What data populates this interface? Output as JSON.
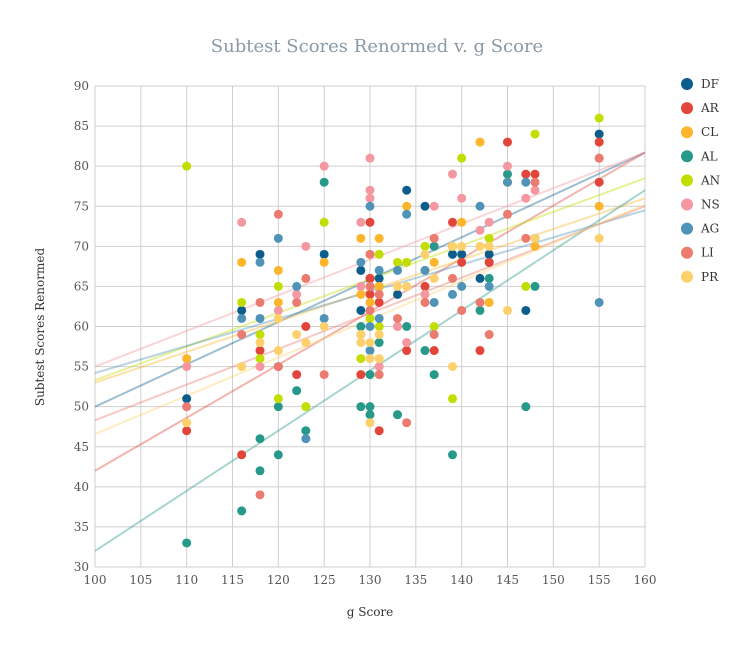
{
  "chart_data": {
    "type": "scatter",
    "title": "Subtest Scores Renormed v. g Score",
    "xlabel": "g Score",
    "ylabel": "Subtest Scores Renormed",
    "xlim": [
      100,
      160
    ],
    "ylim": [
      30,
      90
    ],
    "xticks": [
      100,
      105,
      110,
      115,
      120,
      125,
      130,
      135,
      140,
      145,
      150,
      155,
      160
    ],
    "yticks": [
      30,
      35,
      40,
      45,
      50,
      55,
      60,
      65,
      70,
      75,
      80,
      85,
      90
    ],
    "grid": true,
    "legend_position": "right",
    "series": [
      {
        "name": "DF",
        "color": "#0b5e8c",
        "points": [
          [
            110,
            51
          ],
          [
            116,
            62
          ],
          [
            118,
            69
          ],
          [
            125,
            69
          ],
          [
            129,
            67
          ],
          [
            129,
            62
          ],
          [
            130,
            66
          ],
          [
            131,
            66
          ],
          [
            131,
            65
          ],
          [
            133,
            64
          ],
          [
            134,
            77
          ],
          [
            136,
            75
          ],
          [
            140,
            69
          ],
          [
            139,
            69
          ],
          [
            142,
            66
          ],
          [
            143,
            69
          ],
          [
            143,
            68
          ],
          [
            147,
            62
          ],
          [
            155,
            84
          ]
        ],
        "trend": [
          50,
          81.7
        ]
      },
      {
        "name": "AR",
        "color": "#e2453a",
        "points": [
          [
            110,
            47
          ],
          [
            116,
            44
          ],
          [
            118,
            57
          ],
          [
            122,
            54
          ],
          [
            123,
            60
          ],
          [
            129,
            54
          ],
          [
            130,
            73
          ],
          [
            130,
            66
          ],
          [
            130,
            64
          ],
          [
            131,
            63
          ],
          [
            131,
            47
          ],
          [
            134,
            57
          ],
          [
            136,
            65
          ],
          [
            137,
            57
          ],
          [
            139,
            73
          ],
          [
            140,
            68
          ],
          [
            142,
            57
          ],
          [
            143,
            68
          ],
          [
            145,
            83
          ],
          [
            147,
            79
          ],
          [
            148,
            79
          ],
          [
            155,
            83
          ],
          [
            155,
            78
          ]
        ],
        "trend": [
          42,
          81.7
        ]
      },
      {
        "name": "CL",
        "color": "#fdb52a",
        "points": [
          [
            110,
            56
          ],
          [
            116,
            68
          ],
          [
            120,
            67
          ],
          [
            120,
            63
          ],
          [
            125,
            68
          ],
          [
            129,
            71
          ],
          [
            129,
            64
          ],
          [
            130,
            69
          ],
          [
            130,
            63
          ],
          [
            131,
            71
          ],
          [
            131,
            65
          ],
          [
            133,
            60
          ],
          [
            134,
            75
          ],
          [
            136,
            67
          ],
          [
            137,
            68
          ],
          [
            139,
            70
          ],
          [
            140,
            73
          ],
          [
            142,
            83
          ],
          [
            143,
            63
          ],
          [
            145,
            78
          ],
          [
            148,
            70
          ],
          [
            155,
            75
          ]
        ],
        "trend": [
          53,
          76
        ]
      },
      {
        "name": "AL",
        "color": "#26998a",
        "points": [
          [
            110,
            33
          ],
          [
            116,
            37
          ],
          [
            118,
            46
          ],
          [
            118,
            42
          ],
          [
            120,
            50
          ],
          [
            120,
            44
          ],
          [
            122,
            52
          ],
          [
            123,
            47
          ],
          [
            125,
            78
          ],
          [
            129,
            60
          ],
          [
            129,
            50
          ],
          [
            130,
            50
          ],
          [
            130,
            49
          ],
          [
            130,
            54
          ],
          [
            131,
            58
          ],
          [
            133,
            49
          ],
          [
            134,
            60
          ],
          [
            136,
            57
          ],
          [
            137,
            70
          ],
          [
            137,
            54
          ],
          [
            139,
            44
          ],
          [
            142,
            62
          ],
          [
            143,
            66
          ],
          [
            145,
            79
          ],
          [
            147,
            50
          ],
          [
            148,
            65
          ]
        ],
        "trend": [
          32,
          77
        ]
      },
      {
        "name": "AN",
        "color": "#c2de00",
        "points": [
          [
            110,
            80
          ],
          [
            116,
            63
          ],
          [
            118,
            59
          ],
          [
            118,
            56
          ],
          [
            120,
            65
          ],
          [
            120,
            51
          ],
          [
            123,
            50
          ],
          [
            125,
            73
          ],
          [
            129,
            56
          ],
          [
            130,
            61
          ],
          [
            131,
            69
          ],
          [
            131,
            60
          ],
          [
            133,
            68
          ],
          [
            134,
            68
          ],
          [
            136,
            70
          ],
          [
            137,
            60
          ],
          [
            139,
            51
          ],
          [
            140,
            81
          ],
          [
            143,
            71
          ],
          [
            145,
            78
          ],
          [
            147,
            65
          ],
          [
            148,
            84
          ],
          [
            155,
            86
          ]
        ],
        "trend": [
          53.3,
          78.5
        ]
      },
      {
        "name": "NS",
        "color": "#f497a0",
        "points": [
          [
            110,
            55
          ],
          [
            116,
            73
          ],
          [
            118,
            55
          ],
          [
            120,
            62
          ],
          [
            122,
            64
          ],
          [
            123,
            70
          ],
          [
            125,
            80
          ],
          [
            129,
            73
          ],
          [
            129,
            65
          ],
          [
            130,
            81
          ],
          [
            130,
            77
          ],
          [
            130,
            76
          ],
          [
            130,
            65
          ],
          [
            131,
            55
          ],
          [
            131,
            64
          ],
          [
            133,
            60
          ],
          [
            134,
            58
          ],
          [
            136,
            64
          ],
          [
            137,
            75
          ],
          [
            139,
            79
          ],
          [
            140,
            76
          ],
          [
            142,
            72
          ],
          [
            143,
            73
          ],
          [
            145,
            80
          ],
          [
            147,
            76
          ],
          [
            148,
            77
          ],
          [
            155,
            81
          ]
        ],
        "trend": [
          55,
          81.7
        ]
      },
      {
        "name": "AG",
        "color": "#4f93b8",
        "points": [
          [
            116,
            61
          ],
          [
            118,
            68
          ],
          [
            118,
            61
          ],
          [
            120,
            71
          ],
          [
            120,
            55
          ],
          [
            122,
            65
          ],
          [
            123,
            46
          ],
          [
            125,
            61
          ],
          [
            129,
            68
          ],
          [
            130,
            75
          ],
          [
            130,
            60
          ],
          [
            130,
            57
          ],
          [
            131,
            61
          ],
          [
            131,
            67
          ],
          [
            133,
            67
          ],
          [
            134,
            74
          ],
          [
            136,
            67
          ],
          [
            137,
            63
          ],
          [
            139,
            64
          ],
          [
            140,
            65
          ],
          [
            142,
            75
          ],
          [
            143,
            65
          ],
          [
            145,
            78
          ],
          [
            147,
            78
          ],
          [
            148,
            71
          ],
          [
            155,
            63
          ]
        ],
        "trend": [
          54.2,
          74.5
        ]
      },
      {
        "name": "LI",
        "color": "#ea7b6e",
        "points": [
          [
            110,
            50
          ],
          [
            116,
            59
          ],
          [
            118,
            63
          ],
          [
            118,
            39
          ],
          [
            120,
            74
          ],
          [
            120,
            55
          ],
          [
            122,
            63
          ],
          [
            123,
            66
          ],
          [
            125,
            54
          ],
          [
            129,
            59
          ],
          [
            130,
            69
          ],
          [
            130,
            65
          ],
          [
            130,
            62
          ],
          [
            131,
            54
          ],
          [
            131,
            64
          ],
          [
            133,
            61
          ],
          [
            134,
            48
          ],
          [
            136,
            63
          ],
          [
            137,
            71
          ],
          [
            137,
            59
          ],
          [
            139,
            66
          ],
          [
            140,
            62
          ],
          [
            142,
            63
          ],
          [
            143,
            59
          ],
          [
            145,
            74
          ],
          [
            147,
            71
          ],
          [
            148,
            78
          ],
          [
            155,
            81
          ]
        ],
        "trend": [
          48.3,
          75
        ]
      },
      {
        "name": "PR",
        "color": "#fdd06c",
        "points": [
          [
            110,
            48
          ],
          [
            116,
            55
          ],
          [
            118,
            58
          ],
          [
            120,
            57
          ],
          [
            120,
            61
          ],
          [
            122,
            59
          ],
          [
            123,
            58
          ],
          [
            125,
            60
          ],
          [
            129,
            59
          ],
          [
            129,
            58
          ],
          [
            130,
            58
          ],
          [
            130,
            56
          ],
          [
            130,
            48
          ],
          [
            131,
            56
          ],
          [
            131,
            59
          ],
          [
            133,
            65
          ],
          [
            134,
            65
          ],
          [
            136,
            69
          ],
          [
            137,
            66
          ],
          [
            139,
            55
          ],
          [
            139,
            70
          ],
          [
            140,
            70
          ],
          [
            142,
            70
          ],
          [
            143,
            70
          ],
          [
            145,
            62
          ],
          [
            148,
            71
          ],
          [
            155,
            71
          ]
        ],
        "trend": [
          46.6,
          75.2
        ]
      }
    ]
  }
}
